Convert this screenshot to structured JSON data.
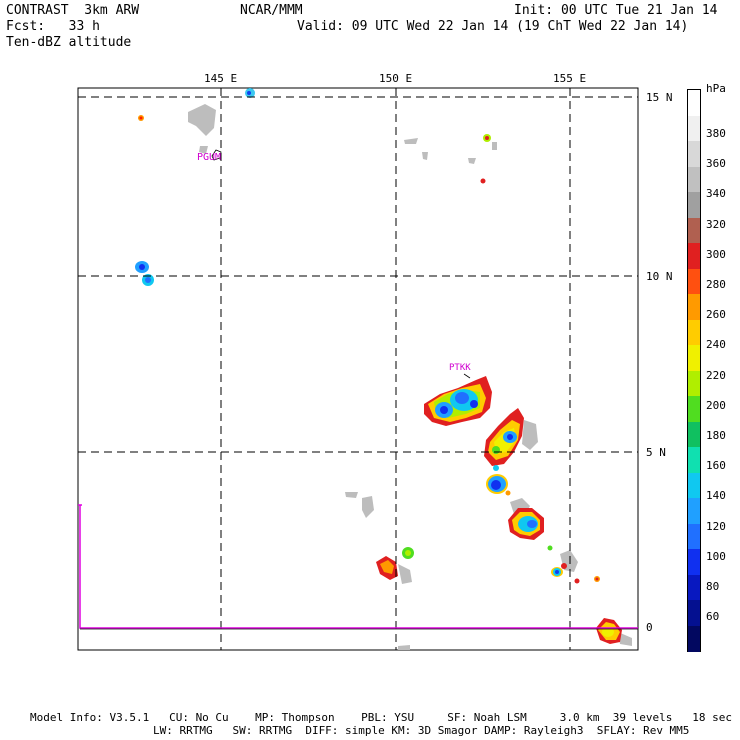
{
  "header": {
    "line1_left": "CONTRAST  3km ARW",
    "line2_left": "Fcst:   33 h",
    "line3_left": "Ten-dBZ altitude",
    "center": "NCAR/MMM",
    "init": "Init: 00 UTC Tue 21 Jan 14",
    "valid": "Valid: 09 UTC Wed 22 Jan 14 (19 ChT Wed 22 Jan 14)"
  },
  "map": {
    "lon_labels": [
      "145 E",
      "150 E",
      "155 E"
    ],
    "lat_labels": [
      "15 N",
      "10 N",
      "5 N",
      "0"
    ],
    "stations": [
      "PGUM",
      "PTKK"
    ],
    "gridlines": "dashed",
    "boundary_color": "#e000e0"
  },
  "legend": {
    "unit": "hPa",
    "levels": [
      "380",
      "360",
      "340",
      "320",
      "300",
      "280",
      "260",
      "240",
      "220",
      "200",
      "180",
      "160",
      "140",
      "120",
      "100",
      "80",
      "60"
    ],
    "colors": [
      "#ffffff",
      "#f0f0f0",
      "#d8d8d8",
      "#c0c0c0",
      "#a0a0a0",
      "#b06050",
      "#e02020",
      "#ff5010",
      "#ff9a00",
      "#ffcc00",
      "#f0f000",
      "#b0ee00",
      "#50dd20",
      "#10c060",
      "#10e0b0",
      "#10c8f0",
      "#20a0ff",
      "#2070ff",
      "#1030f0",
      "#0818c0",
      "#041090",
      "#020860"
    ]
  },
  "footer": {
    "line1": "Model Info: V3.5.1   CU: No Cu    MP: Thompson    PBL: YSU     SF: Noah LSM     3.0 km  39 levels   18 sec",
    "line2": "LW: RRTMG   SW: RRTMG  DIFF: simple KM: 3D Smagor DAMP: Rayleigh3  SFLAY: Rev MM5"
  }
}
